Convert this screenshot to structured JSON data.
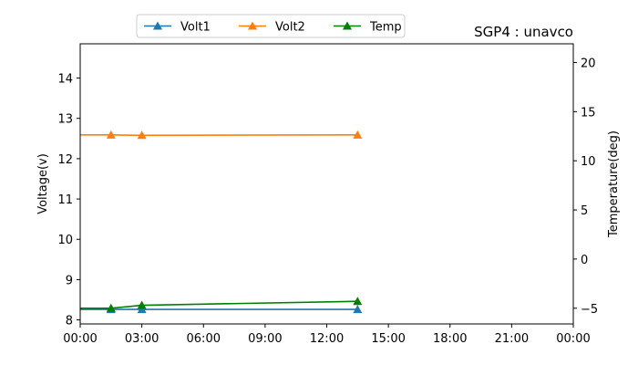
{
  "chart_data": {
    "type": "line",
    "title": "SGP4 : unavco",
    "xlabel": "",
    "ylabel": "Voltage(v)",
    "ylabel_right": "Temperature(deg)",
    "x_ticks": [
      "00:00",
      "03:00",
      "06:00",
      "09:00",
      "12:00",
      "15:00",
      "18:00",
      "21:00",
      "00:00"
    ],
    "xlim_hours": [
      0,
      24
    ],
    "ylim": [
      7.9,
      14.85
    ],
    "yticks": [
      8,
      9,
      10,
      11,
      12,
      13,
      14
    ],
    "ylim_right": [
      -6.6,
      21.9
    ],
    "yticks_right": [
      -5,
      0,
      5,
      10,
      15,
      20
    ],
    "legend_position": "top-center",
    "grid": false,
    "series": [
      {
        "name": "Volt1",
        "axis": "left",
        "color": "#1f77b4",
        "marker": "triangle",
        "x": [
          "01:30",
          "03:00",
          "13:30"
        ],
        "y": [
          8.26,
          8.26,
          8.26
        ]
      },
      {
        "name": "Volt2",
        "axis": "left",
        "color": "#ff7f0e",
        "marker": "triangle",
        "x": [
          "01:30",
          "03:00",
          "13:30"
        ],
        "y": [
          12.59,
          12.58,
          12.59
        ]
      },
      {
        "name": "Temp",
        "axis": "right",
        "color": "#008000",
        "marker": "triangle",
        "x": [
          "01:30",
          "03:00",
          "13:30"
        ],
        "y": [
          -5.0,
          -4.7,
          -4.3
        ]
      }
    ]
  }
}
